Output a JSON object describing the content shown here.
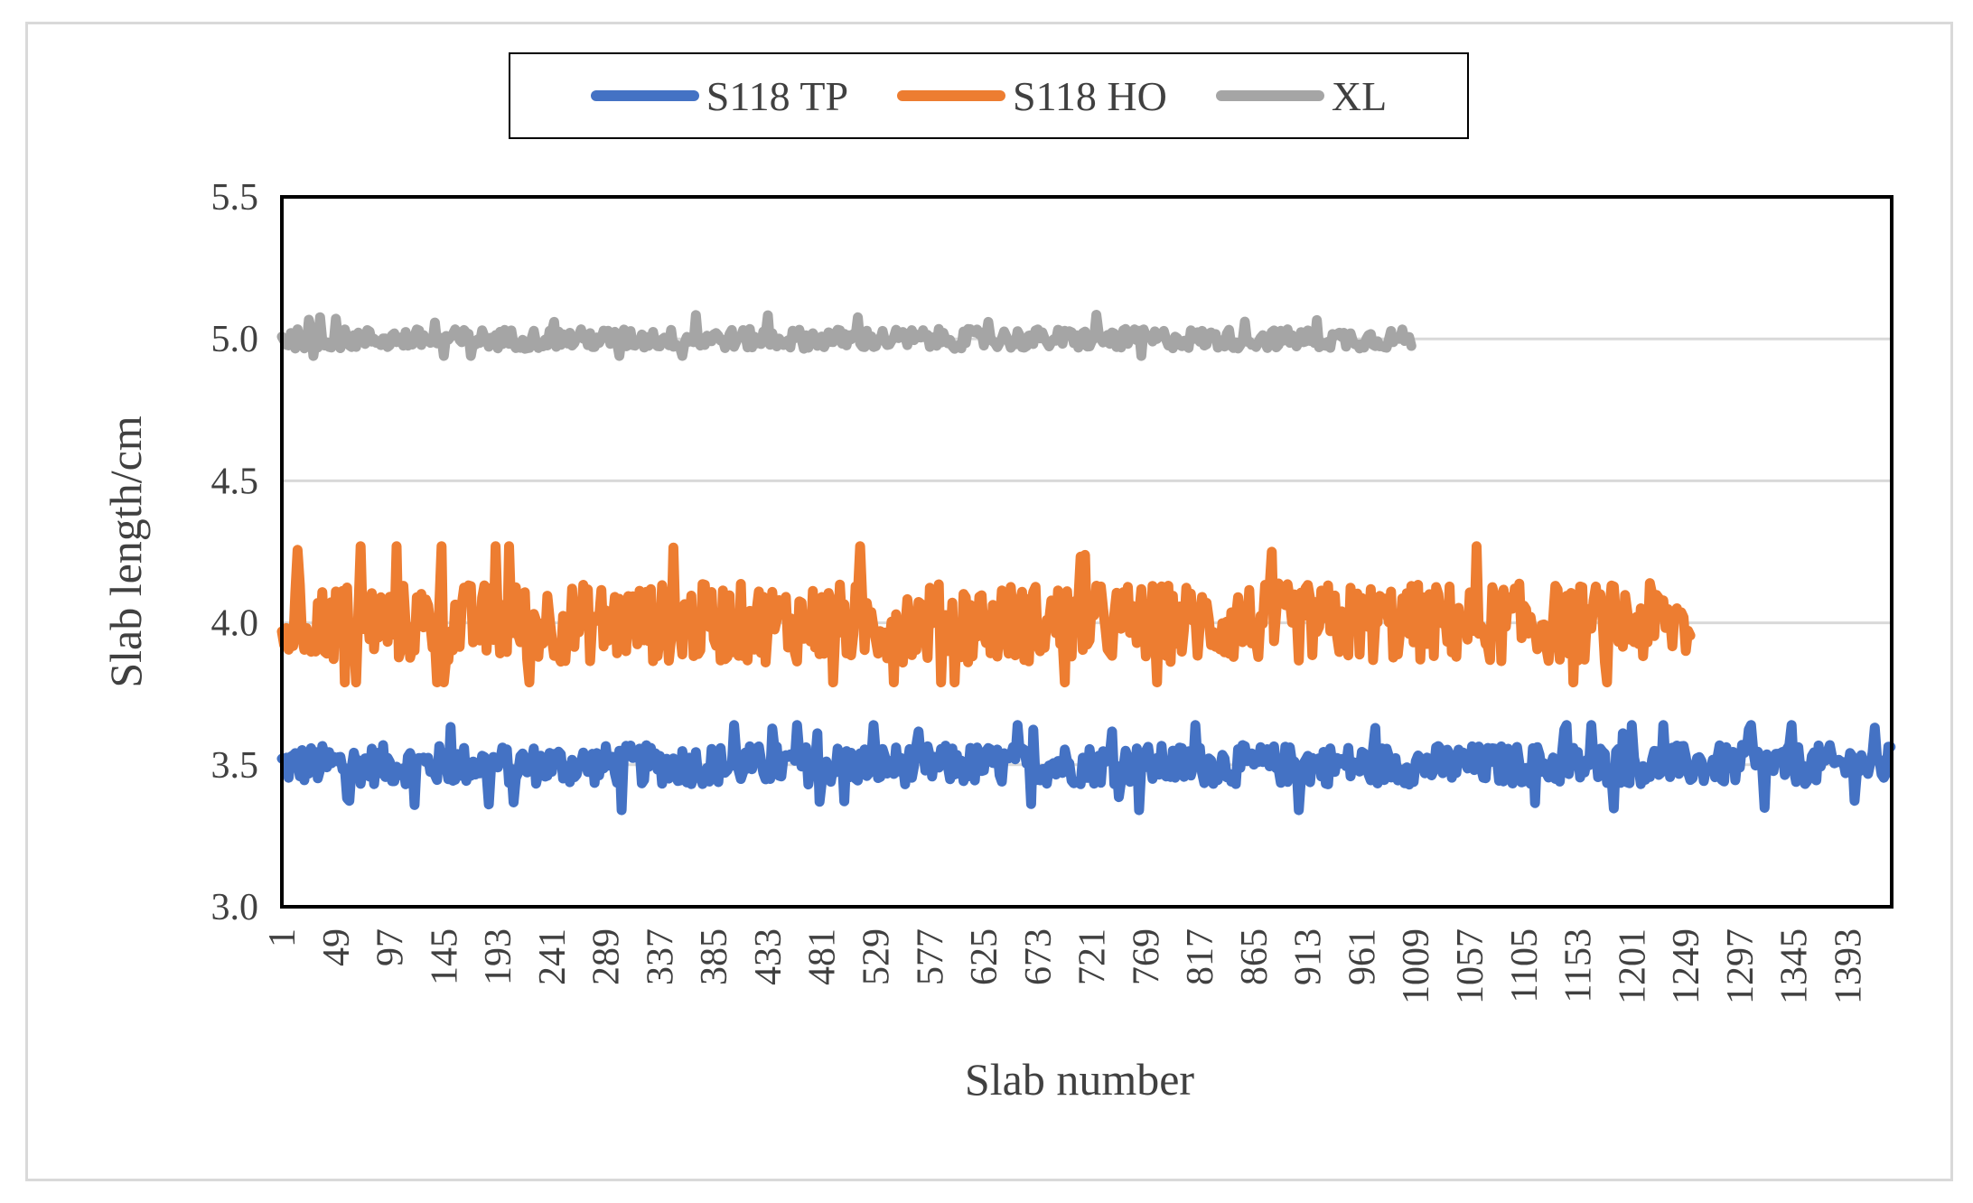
{
  "chart_data": {
    "type": "line",
    "title": "",
    "xlabel": "Slab number",
    "ylabel": "Slab length/cm",
    "ylim": [
      3.0,
      5.5
    ],
    "yticks": [
      "3.0",
      "3.5",
      "4.0",
      "4.5",
      "5.0",
      "5.5"
    ],
    "xrange": [
      1,
      1432
    ],
    "xticks": [
      "1",
      "49",
      "97",
      "145",
      "193",
      "241",
      "289",
      "337",
      "385",
      "433",
      "481",
      "529",
      "577",
      "625",
      "673",
      "721",
      "769",
      "817",
      "865",
      "913",
      "961",
      "1009",
      "1057",
      "1105",
      "1153",
      "1201",
      "1249",
      "1297",
      "1345",
      "1393"
    ],
    "grid": "horizontal",
    "legend_position": "top",
    "series": [
      {
        "name": "S118 TP",
        "color": "#4472c4",
        "mean": 3.5,
        "spread": 0.05,
        "x_start": 1,
        "x_end": 1432,
        "min": 3.34,
        "max": 3.64
      },
      {
        "name": "S118 HO",
        "color": "#ed7d31",
        "mean": 4.0,
        "spread": 0.1,
        "x_start": 1,
        "x_end": 1253,
        "min": 3.79,
        "max": 4.27
      },
      {
        "name": "XL",
        "color": "#a5a5a5",
        "mean": 5.0,
        "spread": 0.025,
        "x_start": 1,
        "x_end": 1005,
        "min": 4.94,
        "max": 5.09
      }
    ]
  }
}
